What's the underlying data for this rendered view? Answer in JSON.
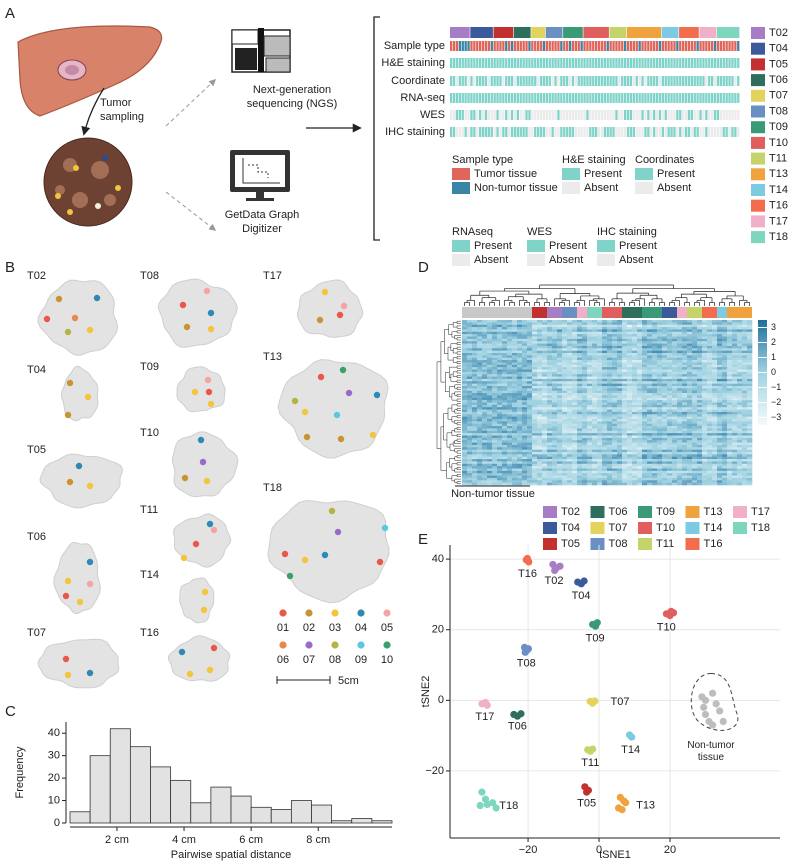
{
  "panel_labels": [
    "A",
    "B",
    "C",
    "D",
    "E"
  ],
  "workflow": {
    "tumor_sampling": [
      "Tumor",
      "sampling"
    ],
    "ngs": [
      "Next-generation",
      "sequencing (NGS)"
    ],
    "digitizer": [
      "GetData Graph",
      "Digitizer"
    ]
  },
  "tracks": {
    "rows": [
      "Sample type",
      "H&E staining",
      "Coordinate",
      "RNA-seq",
      "WES",
      "IHC staining"
    ],
    "legend": [
      {
        "title": "Sample type",
        "items": [
          {
            "label": "Tumor tissue",
            "color": "#e0655a"
          },
          {
            "label": "Non-tumor tissue",
            "color": "#3a84a6"
          }
        ]
      },
      {
        "title": "H&E staining",
        "items": [
          {
            "label": "Present",
            "color": "#7fd3c9"
          },
          {
            "label": "Absent",
            "color": "#ebebeb"
          }
        ]
      },
      {
        "title": "Coordinates",
        "items": [
          {
            "label": "Present",
            "color": "#7fd3c9"
          },
          {
            "label": "Absent",
            "color": "#ebebeb"
          }
        ]
      },
      {
        "title": "RNAseq",
        "items": [
          {
            "label": "Present",
            "color": "#7fd3c9"
          },
          {
            "label": "Absent",
            "color": "#ebebeb"
          }
        ]
      },
      {
        "title": "WES",
        "items": [
          {
            "label": "Present",
            "color": "#7fd3c9"
          },
          {
            "label": "Absent",
            "color": "#ebebeb"
          }
        ]
      },
      {
        "title": "IHC staining",
        "items": [
          {
            "label": "Present",
            "color": "#7fd3c9"
          },
          {
            "label": "Absent",
            "color": "#ebebeb"
          }
        ]
      }
    ]
  },
  "tumors": [
    {
      "name": "T02",
      "color": "#a77dc6"
    },
    {
      "name": "T04",
      "color": "#3a5a9c"
    },
    {
      "name": "T05",
      "color": "#c23030"
    },
    {
      "name": "T06",
      "color": "#2d6e5c"
    },
    {
      "name": "T07",
      "color": "#e2d35c"
    },
    {
      "name": "T08",
      "color": "#6a8fc2"
    },
    {
      "name": "T09",
      "color": "#3a9a78"
    },
    {
      "name": "T10",
      "color": "#e05e5e"
    },
    {
      "name": "T11",
      "color": "#c4d46a"
    },
    {
      "name": "T13",
      "color": "#f0a23c"
    },
    {
      "name": "T14",
      "color": "#7ccbe2"
    },
    {
      "name": "T16",
      "color": "#f26c4e"
    },
    {
      "name": "T17",
      "color": "#f2b0c8"
    },
    {
      "name": "T18",
      "color": "#7ed6bf"
    }
  ],
  "spatial": {
    "samples": [
      {
        "label": "01",
        "color": "#e8574a"
      },
      {
        "label": "02",
        "color": "#c8942e"
      },
      {
        "label": "03",
        "color": "#f2c53d"
      },
      {
        "label": "04",
        "color": "#2e8ab2"
      },
      {
        "label": "05",
        "color": "#f6a3a3"
      },
      {
        "label": "06",
        "color": "#e8884a"
      },
      {
        "label": "07",
        "color": "#9a6ac8"
      },
      {
        "label": "08",
        "color": "#b4b446"
      },
      {
        "label": "09",
        "color": "#5ac8e0"
      },
      {
        "label": "10",
        "color": "#3aa06a"
      }
    ],
    "scale_bar": "5cm"
  },
  "heatmap": {
    "group_label": "Non-tumor tissue",
    "colorbar_lim": [
      -3.5,
      3.5
    ],
    "colorbar_ticks": [
      3,
      2,
      1,
      0,
      {
        "value": -1,
        "label": "−1"
      },
      {
        "value": -2,
        "label": "−2"
      },
      {
        "value": -3,
        "label": "−3"
      }
    ]
  },
  "chart_data": [
    {
      "type": "histogram",
      "x_label": "Pairwise spatial distance",
      "y_label": "Frequency",
      "color": "#e2e2e2",
      "bins": [
        0.6,
        1.2,
        1.8,
        2.4,
        3.0,
        3.6,
        4.2,
        4.8,
        5.4,
        6.0,
        6.6,
        7.2,
        7.8,
        8.4,
        9.0,
        9.6,
        10.2
      ],
      "values": [
        5,
        30,
        42,
        34,
        25,
        19,
        9,
        16,
        12,
        7,
        6,
        10,
        8,
        1,
        2,
        1
      ],
      "xlim": [
        0.6,
        10.2
      ],
      "ylim": [
        0,
        45
      ],
      "xticks": [
        {
          "value": 2,
          "label": "2 cm"
        },
        {
          "value": 4,
          "label": "4 cm"
        },
        {
          "value": 6,
          "label": "6 cm"
        },
        {
          "value": 8,
          "label": "8 cm"
        }
      ],
      "yticks": [
        0,
        10,
        20,
        30,
        40
      ]
    },
    {
      "type": "scatter",
      "x_label": "tSNE1",
      "y_label": "tSNE2",
      "grid": true,
      "xlim": [
        -42,
        51
      ],
      "ylim": [
        -39,
        44
      ],
      "xticks": [
        {
          "value": -20,
          "label": "−20"
        },
        0,
        20
      ],
      "yticks": [
        {
          "value": -20,
          "label": "−20"
        },
        0,
        20,
        40
      ],
      "series": [
        {
          "name": "T16",
          "color": "#f26c4e",
          "x": [
            -20.5,
            -19.8,
            -20.2
          ],
          "values": [
            39.8,
            39.2,
            40.2
          ]
        },
        {
          "name": "T02",
          "color": "#a77dc6",
          "x": [
            -13,
            -12,
            -11,
            -12.5
          ],
          "values": [
            38.5,
            37.5,
            38,
            36.8
          ]
        },
        {
          "name": "T04",
          "color": "#3a5a9c",
          "x": [
            -6,
            -5,
            -4.2
          ],
          "values": [
            33.5,
            33,
            33.8
          ]
        },
        {
          "name": "T09",
          "color": "#3a9a78",
          "x": [
            -1.8,
            -1,
            -0.5
          ],
          "values": [
            21.5,
            21,
            22
          ]
        },
        {
          "name": "T10",
          "color": "#e05e5e",
          "x": [
            19,
            20,
            21,
            20.3
          ],
          "values": [
            24.5,
            24,
            24.8,
            25.2
          ]
        },
        {
          "name": "T08",
          "color": "#6a8fc2",
          "x": [
            -21,
            -20.3,
            -20.8,
            -19.9
          ],
          "values": [
            15,
            14.2,
            13.6,
            14.6
          ]
        },
        {
          "name": "T17",
          "color": "#f2b0c8",
          "x": [
            -33,
            -32,
            -31.5
          ],
          "values": [
            -1,
            -0.6,
            -1.4
          ]
        },
        {
          "name": "T06",
          "color": "#2d6e5c",
          "x": [
            -24,
            -23,
            -22
          ],
          "values": [
            -4,
            -4.5,
            -3.8
          ]
        },
        {
          "name": "T07",
          "color": "#e2d35c",
          "x": [
            -2.5,
            -1.8,
            -1.2
          ],
          "values": [
            -0.3,
            -0.8,
            -0.2
          ]
        },
        {
          "name": "T11",
          "color": "#c4d46a",
          "x": [
            -3.2,
            -2.4,
            -1.8
          ],
          "values": [
            -14,
            -14.4,
            -13.8
          ]
        },
        {
          "name": "T14",
          "color": "#7ccbe2",
          "x": [
            8.6,
            9.2
          ],
          "values": [
            -9.8,
            -10.4
          ]
        },
        {
          "name": "T05",
          "color": "#c23030",
          "x": [
            -4,
            -3,
            -3.5
          ],
          "values": [
            -24.5,
            -25.5,
            -26
          ]
        },
        {
          "name": "T13",
          "color": "#f0a23c",
          "x": [
            6,
            7,
            5.5,
            6.5,
            7.5
          ],
          "values": [
            -27.5,
            -28.5,
            -30.5,
            -31,
            -29
          ]
        },
        {
          "name": "T18",
          "color": "#7ed6bf",
          "x": [
            -33,
            -32,
            -31.5,
            -30,
            -29,
            -33.5
          ],
          "values": [
            -26,
            -28,
            -29.5,
            -29,
            -30.5,
            -29.8
          ]
        },
        {
          "name": "Non-tumor tissue",
          "color": "#bdbdbd",
          "x": [
            29,
            30,
            32,
            33,
            30,
            34,
            35,
            31,
            32,
            29.5
          ],
          "values": [
            1,
            0,
            2,
            -1,
            -4,
            -3,
            -6,
            -6,
            -7,
            -2
          ]
        }
      ]
    }
  ]
}
